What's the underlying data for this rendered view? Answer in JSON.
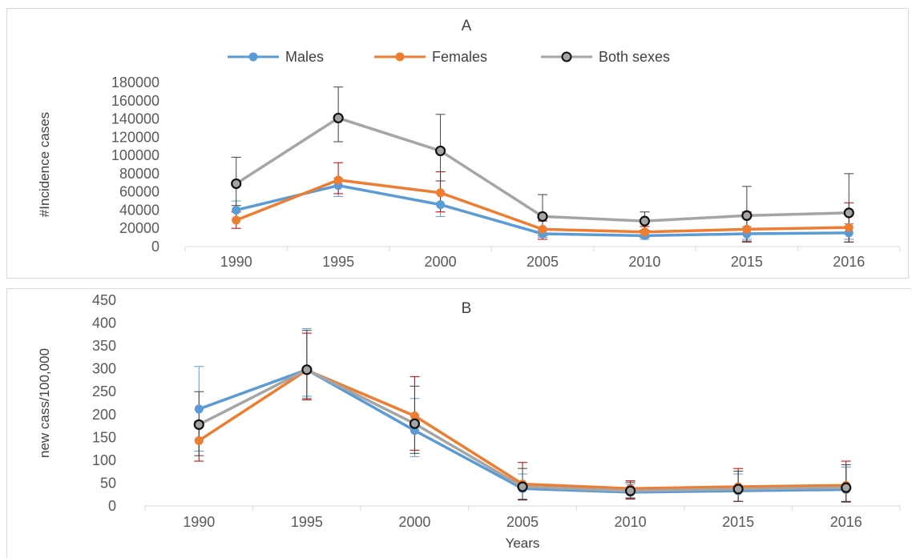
{
  "chart_data": [
    {
      "type": "line",
      "title": "A",
      "xlabel": "",
      "ylabel": "#Incidence cases",
      "x": [
        "1990",
        "1995",
        "2000",
        "2005",
        "2010",
        "2015",
        "2016"
      ],
      "ylim": [
        0,
        180000
      ],
      "yticks": [
        "0",
        "20000",
        "40000",
        "60000",
        "80000",
        "100000",
        "120000",
        "140000",
        "160000",
        "180000"
      ],
      "legend_position": "top",
      "grid": false,
      "series": [
        {
          "name": "Males",
          "color": "#5b9bd5",
          "values": [
            40000,
            67000,
            46000,
            14000,
            12000,
            14000,
            15000
          ],
          "error_low": [
            30000,
            55000,
            33000,
            10000,
            8000,
            8000,
            8000
          ],
          "error_high": [
            50000,
            75000,
            58000,
            18000,
            16000,
            22000,
            25000
          ]
        },
        {
          "name": "Females",
          "color": "#ed7d31",
          "values": [
            29000,
            73000,
            59000,
            19000,
            16000,
            19000,
            21000
          ],
          "error_low": [
            20000,
            58000,
            38000,
            8000,
            10000,
            5000,
            5000
          ],
          "error_high": [
            38000,
            92000,
            82000,
            28000,
            22000,
            38000,
            48000
          ]
        },
        {
          "name": "Both sexes",
          "color": "#a5a5a5",
          "values": [
            69000,
            141000,
            105000,
            33000,
            28000,
            34000,
            37000
          ],
          "error_low": [
            45000,
            115000,
            72000,
            12000,
            18000,
            6000,
            5000
          ],
          "error_high": [
            98000,
            175000,
            145000,
            57000,
            38000,
            66000,
            80000
          ]
        }
      ]
    },
    {
      "type": "line",
      "title": "B",
      "xlabel": "Years",
      "ylabel": "new cass/100,000",
      "x": [
        "1990",
        "1995",
        "2000",
        "2005",
        "2010",
        "2015",
        "2016"
      ],
      "ylim": [
        0,
        450
      ],
      "yticks": [
        "0",
        "50",
        "100",
        "150",
        "200",
        "250",
        "300",
        "350",
        "400",
        "450"
      ],
      "grid": false,
      "series": [
        {
          "name": "Males",
          "color": "#5b9bd5",
          "values": [
            212,
            298,
            165,
            38,
            30,
            33,
            36
          ],
          "error_low": [
            120,
            240,
            108,
            15,
            18,
            10,
            8
          ],
          "error_high": [
            305,
            388,
            235,
            70,
            48,
            70,
            85
          ]
        },
        {
          "name": "Females",
          "color": "#ed7d31",
          "values": [
            143,
            297,
            197,
            48,
            38,
            42,
            45
          ],
          "error_low": [
            98,
            232,
            122,
            13,
            15,
            10,
            10
          ],
          "error_high": [
            185,
            378,
            283,
            95,
            55,
            82,
            98
          ]
        },
        {
          "name": "Both sexes",
          "color": "#a5a5a5",
          "values": [
            178,
            298,
            180,
            42,
            33,
            37,
            40
          ],
          "error_low": [
            110,
            235,
            115,
            14,
            17,
            10,
            9
          ],
          "error_high": [
            250,
            384,
            262,
            82,
            52,
            76,
            90
          ]
        }
      ]
    }
  ]
}
